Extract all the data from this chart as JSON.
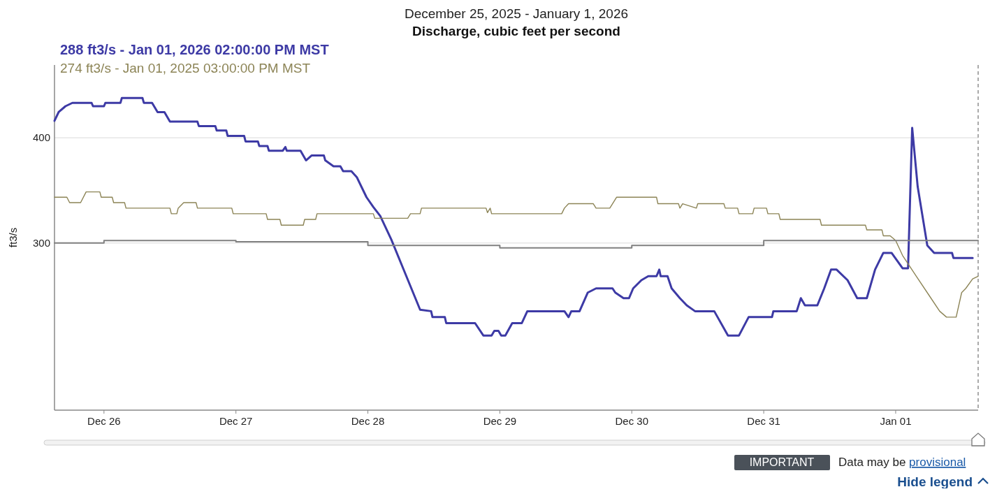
{
  "chart_data": {
    "type": "line",
    "title": "Discharge, cubic feet per second",
    "subtitle": "December 25, 2025 - January 1, 2026",
    "ylabel": "ft3/s",
    "xlim": [
      "2025-12-25T15:00",
      "2026-01-01T15:00"
    ],
    "xticks": [
      {
        "value": "2025-12-26",
        "label": "Dec 26"
      },
      {
        "value": "2025-12-27",
        "label": "Dec 27"
      },
      {
        "value": "2025-12-28",
        "label": "Dec 28"
      },
      {
        "value": "2025-12-29",
        "label": "Dec 29"
      },
      {
        "value": "2025-12-30",
        "label": "Dec 30"
      },
      {
        "value": "2025-12-31",
        "label": "Dec 31"
      },
      {
        "value": "2026-01-01",
        "label": "Jan 01"
      }
    ],
    "ylim": [
      190,
      488
    ],
    "yticks": [
      300,
      400
    ],
    "log": "y",
    "grid": "y",
    "legend": "top left",
    "series": [
      {
        "name": "288 ft3/s - Jan 01, 2026 02:00:00 PM MST",
        "color": "#3d3aa5",
        "x": [
          "2025-12-25T15:00",
          "2025-12-25T15:45",
          "2025-12-25T17:00",
          "2025-12-25T18:15",
          "2025-12-25T21:45",
          "2025-12-25T22:00",
          "2025-12-26T00:00",
          "2025-12-26T00:15",
          "2025-12-26T03:00",
          "2025-12-26T03:15",
          "2025-12-26T07:00",
          "2025-12-26T07:15",
          "2025-12-26T08:45",
          "2025-12-26T09:45",
          "2025-12-26T11:00",
          "2025-12-26T12:00",
          "2025-12-26T17:00",
          "2025-12-26T17:15",
          "2025-12-26T20:15",
          "2025-12-26T20:30",
          "2025-12-26T22:15",
          "2025-12-26T22:30",
          "2025-12-27T01:30",
          "2025-12-27T01:45",
          "2025-12-27T04:00",
          "2025-12-27T04:15",
          "2025-12-27T05:45",
          "2025-12-27T06:00",
          "2025-12-27T08:30",
          "2025-12-27T09:00",
          "2025-12-27T09:15",
          "2025-12-27T11:45",
          "2025-12-27T12:45",
          "2025-12-27T13:45",
          "2025-12-27T16:00",
          "2025-12-27T16:15",
          "2025-12-27T17:45",
          "2025-12-27T19:00",
          "2025-12-27T19:30",
          "2025-12-27T21:00",
          "2025-12-27T22:00",
          "2025-12-27T23:45",
          "2025-12-28T01:00",
          "2025-12-28T02:15",
          "2025-12-28T04:15",
          "2025-12-28T06:30",
          "2025-12-28T09:30",
          "2025-12-28T11:30",
          "2025-12-28T11:45",
          "2025-12-28T14:00",
          "2025-12-28T14:15",
          "2025-12-28T19:30",
          "2025-12-28T21:00",
          "2025-12-28T22:30",
          "2025-12-28T23:00",
          "2025-12-28T23:45",
          "2025-12-29T00:15",
          "2025-12-29T01:00",
          "2025-12-29T02:15",
          "2025-12-29T04:00",
          "2025-12-29T05:00",
          "2025-12-29T11:45",
          "2025-12-29T12:30",
          "2025-12-29T13:00",
          "2025-12-29T14:30",
          "2025-12-29T16:00",
          "2025-12-29T17:30",
          "2025-12-29T20:30",
          "2025-12-29T21:00",
          "2025-12-29T22:30",
          "2025-12-29T23:30",
          "2025-12-30T00:15",
          "2025-12-30T01:45",
          "2025-12-30T03:00",
          "2025-12-30T04:30",
          "2025-12-30T05:00",
          "2025-12-30T05:15",
          "2025-12-30T06:30",
          "2025-12-30T07:15",
          "2025-12-30T08:45",
          "2025-12-30T10:00",
          "2025-12-30T11:30",
          "2025-12-30T15:00",
          "2025-12-30T17:30",
          "2025-12-30T19:30",
          "2025-12-30T21:15",
          "2025-12-31T01:30",
          "2025-12-31T01:45",
          "2025-12-31T06:00",
          "2025-12-31T06:45",
          "2025-12-31T07:30",
          "2025-12-31T09:45",
          "2025-12-31T11:00",
          "2025-12-31T12:15",
          "2025-12-31T13:15",
          "2025-12-31T15:15",
          "2025-12-31T17:00",
          "2025-12-31T18:45",
          "2025-12-31T20:15",
          "2025-12-31T21:45",
          "2025-12-31T23:15",
          "2026-01-01T01:15",
          "2026-01-01T02:15",
          "2026-01-01T03:00",
          "2026-01-01T04:00",
          "2026-01-01T05:45",
          "2026-01-01T07:00",
          "2026-01-01T10:15",
          "2026-01-01T10:30",
          "2026-01-01T14:00"
        ],
        "values": [
          419,
          429,
          436,
          440,
          440,
          436,
          436,
          440,
          440,
          446,
          446,
          440,
          440,
          429,
          429,
          418,
          418,
          413,
          413,
          408,
          408,
          402,
          402,
          396,
          396,
          391,
          391,
          386,
          386,
          390,
          386,
          386,
          376,
          381,
          381,
          376,
          370,
          370,
          365,
          365,
          359,
          340,
          331,
          323,
          303,
          279,
          250,
          249,
          245,
          245,
          241,
          241,
          233,
          233,
          236,
          236,
          233,
          233,
          241,
          241,
          249,
          249,
          245,
          249,
          249,
          262,
          265,
          265,
          262,
          258,
          258,
          265,
          271,
          274,
          274,
          279,
          274,
          274,
          265,
          258,
          253,
          249,
          249,
          233,
          233,
          245,
          245,
          249,
          249,
          258,
          253,
          253,
          265,
          279,
          279,
          271,
          258,
          258,
          279,
          292,
          292,
          280,
          280,
          411,
          350,
          298,
          292,
          292,
          288,
          288
        ]
      },
      {
        "name": "274 ft3/s - Jan 01, 2025 03:00:00 PM MST",
        "color": "#8c8456",
        "x": [
          "2025-12-25T15:00",
          "2025-12-25T17:15",
          "2025-12-25T17:45",
          "2025-12-25T19:45",
          "2025-12-25T20:45",
          "2025-12-25T23:15",
          "2025-12-25T23:30",
          "2025-12-26T01:30",
          "2025-12-26T01:45",
          "2025-12-26T03:45",
          "2025-12-26T04:00",
          "2025-12-26T12:00",
          "2025-12-26T12:15",
          "2025-12-26T13:15",
          "2025-12-26T13:30",
          "2025-12-26T14:30",
          "2025-12-26T16:45",
          "2025-12-26T17:00",
          "2025-12-26T23:15",
          "2025-12-26T23:30",
          "2025-12-27T05:30",
          "2025-12-27T05:45",
          "2025-12-27T08:00",
          "2025-12-27T08:15",
          "2025-12-27T12:15",
          "2025-12-27T12:30",
          "2025-12-27T14:30",
          "2025-12-27T14:45",
          "2025-12-28T01:00",
          "2025-12-28T01:15",
          "2025-12-28T07:15",
          "2025-12-28T07:45",
          "2025-12-28T09:30",
          "2025-12-28T09:45",
          "2025-12-28T21:30",
          "2025-12-28T21:45",
          "2025-12-28T22:15",
          "2025-12-28T22:30",
          "2025-12-29T11:15",
          "2025-12-29T11:45",
          "2025-12-29T12:30",
          "2025-12-29T17:00",
          "2025-12-29T17:30",
          "2025-12-29T20:00",
          "2025-12-29T20:30",
          "2025-12-29T21:15",
          "2025-12-30T04:30",
          "2025-12-30T04:45",
          "2025-12-30T08:30",
          "2025-12-30T08:45",
          "2025-12-30T09:15",
          "2025-12-30T11:45",
          "2025-12-30T12:00",
          "2025-12-30T16:45",
          "2025-12-30T17:00",
          "2025-12-30T19:15",
          "2025-12-30T19:30",
          "2025-12-30T22:00",
          "2025-12-30T22:15",
          "2025-12-31T00:30",
          "2025-12-31T00:45",
          "2025-12-31T02:45",
          "2025-12-31T03:00",
          "2025-12-31T10:15",
          "2025-12-31T10:30",
          "2025-12-31T18:30",
          "2025-12-31T18:45",
          "2025-12-31T21:30",
          "2025-12-31T21:45",
          "2025-12-31T23:00",
          "2026-01-01T00:00",
          "2026-01-01T01:15",
          "2026-01-01T03:45",
          "2026-01-01T06:15",
          "2026-01-01T08:00",
          "2026-01-01T09:15",
          "2026-01-01T11:00",
          "2026-01-01T12:00",
          "2026-01-01T12:45",
          "2026-01-01T14:00",
          "2026-01-01T15:00"
        ],
        "values": [
          340,
          340,
          335,
          335,
          345,
          345,
          340,
          340,
          335,
          335,
          330,
          330,
          325,
          325,
          330,
          335,
          335,
          330,
          330,
          325,
          325,
          320,
          320,
          315,
          315,
          320,
          320,
          325,
          325,
          321,
          321,
          325,
          325,
          330,
          330,
          326,
          330,
          325,
          325,
          330,
          334,
          334,
          330,
          330,
          334,
          340,
          340,
          334,
          334,
          330,
          334,
          330,
          334,
          334,
          330,
          330,
          325,
          325,
          330,
          330,
          325,
          325,
          320,
          320,
          315,
          315,
          311,
          311,
          306,
          306,
          302,
          290,
          274,
          259,
          249,
          245,
          245,
          262,
          265,
          272,
          274
        ]
      },
      {
        "type": "step",
        "color": "#808080",
        "x": [
          "2025-12-25T15:00",
          "2025-12-26T00:00",
          "2025-12-27T00:00",
          "2025-12-28T00:00",
          "2025-12-29T00:00",
          "2025-12-30T00:00",
          "2025-12-31T00:00",
          "2026-01-01T15:00"
        ],
        "values": [
          300,
          302,
          301,
          298,
          296,
          298,
          302,
          302
        ]
      }
    ],
    "ref_lines": [
      {
        "axis": "x",
        "value": "2026-01-01T15:00",
        "color": "#aaaaaa",
        "line_style": "dashed"
      }
    ],
    "annotations": [
      "IMPORTANT",
      "Data may be provisional",
      "Hide legend"
    ]
  }
}
